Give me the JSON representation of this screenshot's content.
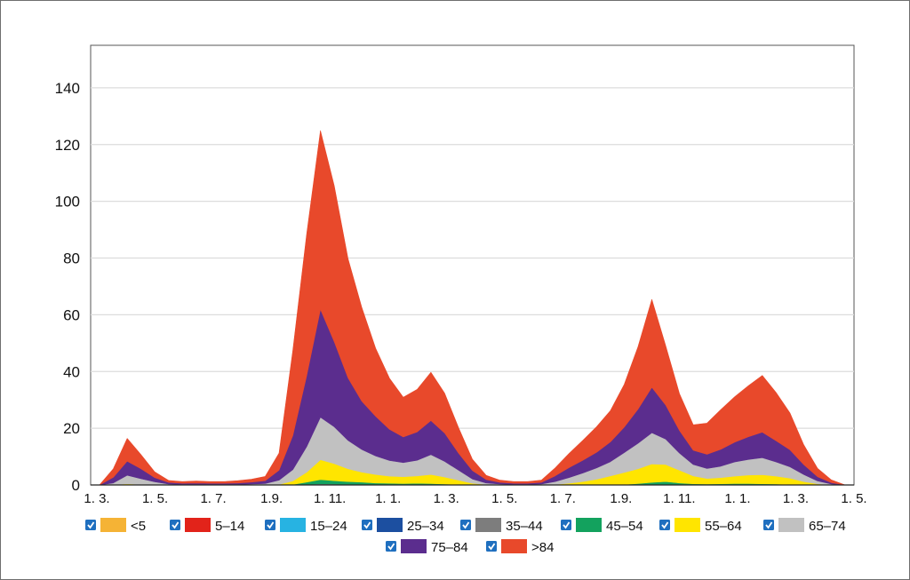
{
  "chart_data": {
    "type": "area",
    "stacked": true,
    "title": "",
    "xlabel": "",
    "ylabel": "",
    "ylim": [
      0,
      155
    ],
    "yticks": [
      0,
      20,
      40,
      60,
      80,
      100,
      120,
      140
    ],
    "grid": "horizontal",
    "legend_position": "bottom",
    "x_tick_labels": [
      "1. 3.",
      "1. 5.",
      "1. 7.",
      "1.9.",
      "1. 11.",
      "1. 1.",
      "1. 3.",
      "1. 5.",
      "1. 7.",
      "1.9.",
      "1. 11.",
      "1. 1.",
      "1. 3.",
      "1. 5."
    ],
    "x_tick_index": [
      0,
      2,
      4,
      6,
      8,
      10,
      12,
      14,
      16,
      18,
      20,
      22,
      24,
      26
    ],
    "series": [
      {
        "name": "<5",
        "color": "#f5b335",
        "values": [
          0,
          0,
          0,
          0,
          0,
          0,
          0,
          0,
          0,
          0,
          0,
          0,
          0,
          0,
          0,
          0,
          0,
          0,
          0,
          0,
          0,
          0,
          0,
          0,
          0,
          0,
          0,
          0,
          0,
          0,
          0,
          0,
          0,
          0,
          0,
          0,
          0,
          0,
          0,
          0,
          0,
          0,
          0,
          0,
          0,
          0,
          0,
          0,
          0,
          0,
          0,
          0,
          0,
          0,
          0
        ]
      },
      {
        "name": "5–14",
        "color": "#e2231a",
        "values": [
          0,
          0,
          0,
          0,
          0,
          0,
          0,
          0,
          0,
          0,
          0,
          0,
          0,
          0,
          0,
          0,
          0,
          0,
          0,
          0,
          0,
          0,
          0,
          0,
          0,
          0,
          0,
          0,
          0,
          0,
          0,
          0,
          0,
          0,
          0,
          0,
          0,
          0,
          0,
          0,
          0,
          0,
          0,
          0,
          0,
          0,
          0,
          0,
          0,
          0,
          0,
          0,
          0,
          0,
          0
        ]
      },
      {
        "name": "15–24",
        "color": "#27b3e2",
        "values": [
          0,
          0,
          0,
          0,
          0,
          0,
          0,
          0,
          0,
          0,
          0,
          0,
          0,
          0,
          0,
          0,
          0,
          0,
          0,
          0,
          0,
          0,
          0,
          0,
          0,
          0,
          0,
          0,
          0,
          0,
          0,
          0,
          0,
          0,
          0,
          0,
          0,
          0,
          0,
          0,
          0,
          0,
          0,
          0,
          0,
          0,
          0,
          0,
          0,
          0,
          0,
          0,
          0,
          0,
          0
        ]
      },
      {
        "name": "25–34",
        "color": "#1c4fa0",
        "values": [
          0,
          0,
          0,
          0,
          0,
          0,
          0,
          0,
          0,
          0,
          0,
          0,
          0,
          0,
          0,
          0,
          0,
          0,
          0,
          0,
          0,
          0,
          0,
          0,
          0,
          0,
          0,
          0,
          0,
          0,
          0,
          0,
          0,
          0,
          0,
          0,
          0,
          0,
          0,
          0,
          0,
          0,
          0,
          0,
          0,
          0,
          0,
          0,
          0,
          0,
          0,
          0,
          0,
          0,
          0
        ]
      },
      {
        "name": "35–44",
        "color": "#7d7d7d",
        "values": [
          0,
          0,
          0,
          0,
          0,
          0,
          0,
          0,
          0,
          0,
          0,
          0,
          0,
          0,
          0,
          0.2,
          0.4,
          0.3,
          0.2,
          0.2,
          0.1,
          0.1,
          0.1,
          0.1,
          0,
          0,
          0,
          0,
          0,
          0,
          0,
          0,
          0,
          0,
          0,
          0,
          0,
          0,
          0,
          0,
          0,
          0,
          0,
          0,
          0,
          0,
          0,
          0,
          0,
          0,
          0,
          0,
          0,
          0,
          0
        ]
      },
      {
        "name": "45–54",
        "color": "#13a25e",
        "values": [
          0,
          0,
          0,
          0,
          0,
          0,
          0,
          0,
          0,
          0,
          0,
          0,
          0,
          0,
          0.2,
          0.8,
          1.5,
          1.2,
          1,
          0.8,
          0.6,
          0.5,
          0.4,
          0.5,
          0.5,
          0.3,
          0.2,
          0.1,
          0,
          0,
          0,
          0,
          0,
          0,
          0,
          0,
          0,
          0,
          0.2,
          0.5,
          0.9,
          1.2,
          0.7,
          0.4,
          0.3,
          0.4,
          0.5,
          0.5,
          0.4,
          0.3,
          0.2,
          0,
          0,
          0,
          0
        ]
      },
      {
        "name": "55–64",
        "color": "#ffe500",
        "values": [
          0,
          0.1,
          0.4,
          0.2,
          0.1,
          0,
          0,
          0,
          0,
          0,
          0,
          0,
          0,
          0.2,
          1.2,
          3.5,
          7,
          6,
          4.5,
          3.5,
          3,
          2.5,
          2.4,
          2.6,
          3.2,
          2.5,
          1.5,
          0.5,
          0.2,
          0,
          0,
          0,
          0,
          0.2,
          0.6,
          1.2,
          2,
          3.2,
          4.2,
          5.2,
          6.5,
          6,
          4.5,
          2.8,
          2,
          2.2,
          2.6,
          3,
          3.2,
          2.8,
          2.2,
          1.2,
          0.4,
          0,
          0
        ]
      },
      {
        "name": "65–74",
        "color": "#c1c1c1",
        "values": [
          0,
          0.6,
          3,
          2,
          1,
          0.3,
          0.2,
          0.2,
          0.2,
          0.2,
          0.2,
          0.3,
          0.5,
          1.5,
          4,
          9,
          15,
          13,
          10,
          8,
          6.5,
          5.5,
          5,
          5.5,
          7,
          5.5,
          3.5,
          1.5,
          0.5,
          0.3,
          0.2,
          0.2,
          0.3,
          1,
          2,
          3,
          4,
          5,
          7,
          9,
          11,
          9,
          6,
          4,
          3.5,
          4,
          5,
          5.5,
          6,
          5,
          4,
          2.5,
          1,
          0.3,
          0
        ]
      },
      {
        "name": "75–84",
        "color": "#5b2d8e",
        "values": [
          0,
          2,
          5,
          3.5,
          1.5,
          0.6,
          0.4,
          0.5,
          0.4,
          0.4,
          0.5,
          0.7,
          1,
          3.5,
          12,
          25,
          38,
          30,
          22,
          17,
          14,
          11,
          9,
          10,
          12,
          10,
          6,
          3,
          1.2,
          0.6,
          0.4,
          0.4,
          0.6,
          2,
          3.5,
          4.5,
          5.5,
          7,
          9,
          12,
          16,
          12,
          8,
          5,
          5,
          6,
          7,
          8,
          9,
          7.5,
          6,
          3.5,
          1.5,
          0.5,
          0
        ]
      },
      {
        "name": ">84",
        "color": "#e8492b",
        "values": [
          0,
          3,
          8,
          5,
          2,
          0.7,
          0.6,
          0.7,
          0.6,
          0.6,
          0.8,
          1,
          1.5,
          6,
          30,
          50,
          63,
          55,
          42,
          33,
          24,
          18,
          14,
          15,
          17,
          14,
          9,
          4,
          1.5,
          0.8,
          0.6,
          0.6,
          0.8,
          2.8,
          5,
          7,
          9,
          11,
          15,
          22,
          31,
          21,
          13,
          9,
          11,
          14,
          16,
          18,
          20,
          17,
          13,
          7,
          3,
          1,
          0
        ]
      }
    ]
  }
}
